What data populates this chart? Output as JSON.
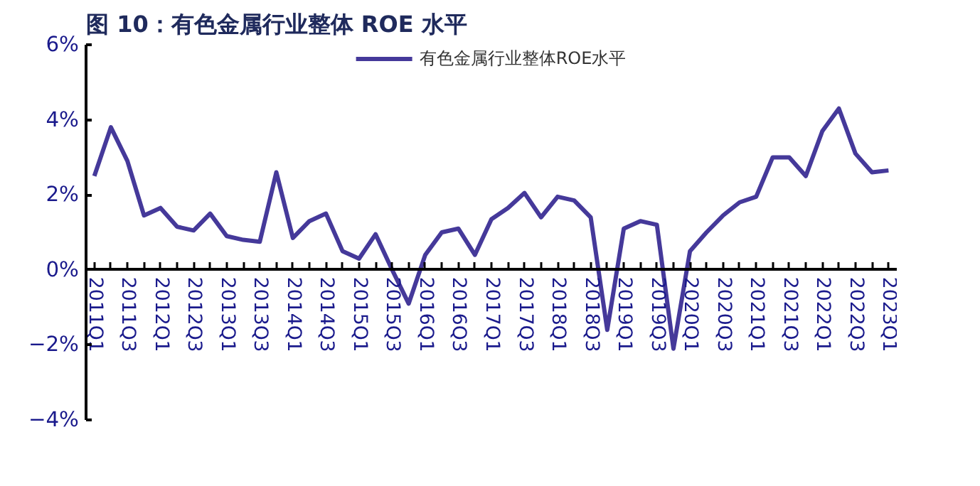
{
  "chart_data": {
    "type": "line",
    "title": "图 10：有色金属行业整体 ROE 水平",
    "categories": [
      "2011Q1",
      null,
      "2011Q3",
      null,
      "2012Q1",
      null,
      "2012Q3",
      null,
      "2013Q1",
      null,
      "2013Q3",
      null,
      "2014Q1",
      null,
      "2014Q3",
      null,
      "2015Q1",
      null,
      "2015Q3",
      null,
      "2016Q1",
      null,
      "2016Q3",
      null,
      "2017Q1",
      null,
      "2017Q3",
      null,
      "2018Q1",
      null,
      "2018Q3",
      null,
      "2019Q1",
      null,
      "2019Q3",
      null,
      "2020Q1",
      null,
      "2020Q3",
      null,
      "2021Q1",
      null,
      "2021Q3",
      null,
      "2022Q1",
      null,
      "2022Q3",
      null,
      "2023Q1"
    ],
    "series": [
      {
        "name": "有色金属行业整体ROE水平",
        "color": "#45399a",
        "values": [
          2.5,
          3.8,
          2.9,
          1.45,
          1.65,
          1.15,
          1.05,
          1.5,
          0.9,
          0.8,
          0.75,
          2.6,
          0.85,
          1.3,
          1.5,
          0.5,
          0.3,
          0.95,
          0.0,
          -0.9,
          0.4,
          1.0,
          1.1,
          0.4,
          1.35,
          1.65,
          2.05,
          1.4,
          1.95,
          1.85,
          1.4,
          -1.6,
          1.1,
          1.3,
          1.2,
          -2.1,
          0.5,
          1.0,
          1.45,
          1.8,
          1.95,
          3.0,
          3.0,
          2.5,
          3.7,
          4.3,
          3.1,
          2.6,
          2.65
        ]
      }
    ],
    "ylim": [
      -4,
      6
    ],
    "yticks": [
      {
        "value": -4,
        "label": "−4%"
      },
      {
        "value": -2,
        "label": "−2%"
      },
      {
        "value": 0,
        "label": "0%"
      },
      {
        "value": 2,
        "label": "2%"
      },
      {
        "value": 4,
        "label": "4%"
      },
      {
        "value": 6,
        "label": "6%"
      }
    ],
    "legend": "top",
    "grid": false,
    "marker": "none",
    "line_style": "solid"
  }
}
